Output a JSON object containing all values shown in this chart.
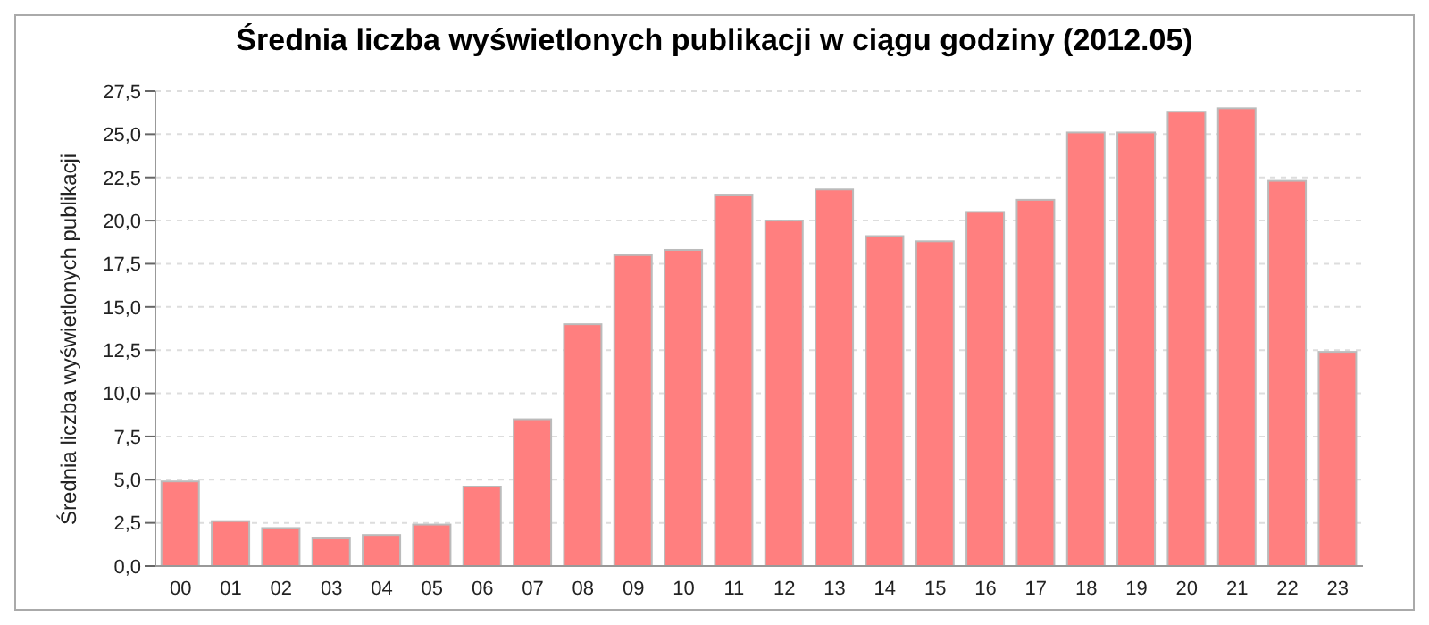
{
  "chart_data": {
    "type": "bar",
    "title": "Średnia liczba wyświetlonych publikacji w ciągu godziny (2012.05)",
    "ylabel": "Średnia liczba wyświetlonych publikacji",
    "categories": [
      "00",
      "01",
      "02",
      "03",
      "04",
      "05",
      "06",
      "07",
      "08",
      "09",
      "10",
      "11",
      "12",
      "13",
      "14",
      "15",
      "16",
      "17",
      "18",
      "19",
      "20",
      "21",
      "22",
      "23"
    ],
    "values": [
      4.9,
      2.6,
      2.2,
      1.6,
      1.8,
      2.4,
      4.6,
      8.5,
      14.0,
      18.0,
      18.3,
      21.5,
      20.0,
      21.8,
      19.1,
      18.8,
      20.5,
      21.2,
      25.1,
      25.1,
      26.3,
      26.5,
      22.3,
      12.4
    ],
    "color": "#ff7f7f",
    "ylim": [
      0,
      27.5
    ],
    "yticks": [
      {
        "value": 0,
        "label": "0,0"
      },
      {
        "value": 2.5,
        "label": "2,5"
      },
      {
        "value": 5,
        "label": "5,0"
      },
      {
        "value": 7.5,
        "label": "7,5"
      },
      {
        "value": 10,
        "label": "10,0"
      },
      {
        "value": 12.5,
        "label": "12,5"
      },
      {
        "value": 15,
        "label": "15,0"
      },
      {
        "value": 17.5,
        "label": "17,5"
      },
      {
        "value": 20,
        "label": "20,0"
      },
      {
        "value": 22.5,
        "label": "22,5"
      },
      {
        "value": 25,
        "label": "25,0"
      },
      {
        "value": 27.5,
        "label": "27,5"
      }
    ],
    "grid": "y"
  }
}
